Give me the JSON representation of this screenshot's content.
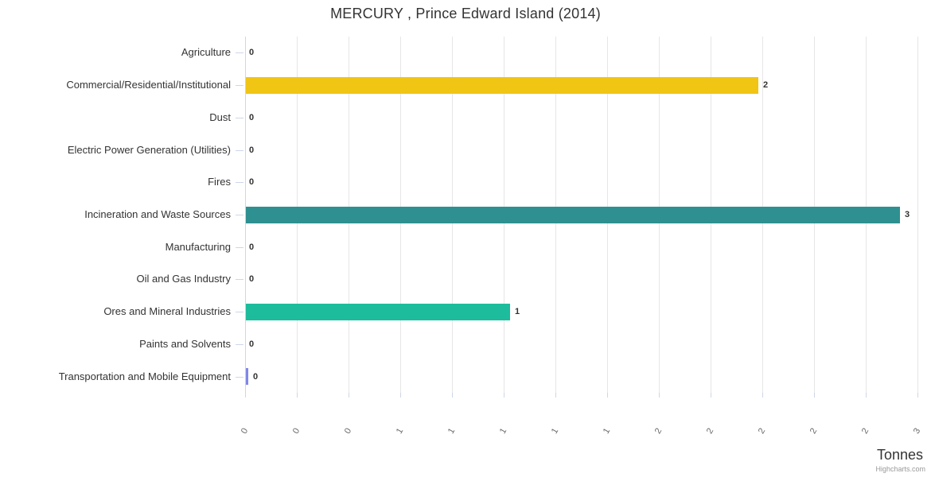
{
  "chart_data": {
    "type": "bar",
    "orientation": "horizontal",
    "title": "MERCURY , Prince Edward Island (2014)",
    "xlabel": "Tonnes",
    "ylabel": "",
    "categories": [
      "Agriculture",
      "Commercial/Residential/Institutional",
      "Dust",
      "Electric Power Generation (Utilities)",
      "Fires",
      "Incineration and Waste Sources",
      "Manufacturing",
      "Oil and Gas Industry",
      "Ores and Mineral Industries",
      "Paints and Solvents",
      "Transportation and Mobile Equipment"
    ],
    "values": [
      0,
      1.98,
      0,
      0,
      0,
      2.53,
      0,
      0,
      1.02,
      0,
      0.01
    ],
    "data_labels": [
      "0",
      "2",
      "0",
      "0",
      "0",
      "3",
      "0",
      "0",
      "1",
      "0",
      "0"
    ],
    "bar_colors": [
      "#cccccc",
      "#F0C514",
      "#cccccc",
      "#cccccc",
      "#cccccc",
      "#2E9090",
      "#cccccc",
      "#cccccc",
      "#1CBC9C",
      "#cccccc",
      "#8087E8"
    ],
    "value_axis": {
      "min": 0,
      "max": 2.6,
      "tick_interval": 0.2,
      "tick_labels": [
        "0",
        "0",
        "0",
        "1",
        "1",
        "1",
        "1",
        "1",
        "2",
        "2",
        "2",
        "2",
        "2",
        "3"
      ],
      "label_rotation_deg": -60
    },
    "grid": true,
    "legend": false
  },
  "credits": "Highcharts.com",
  "colors": {
    "grid": "#e6e6e6",
    "axis": "#ccd6eb",
    "title_text": "#333333",
    "category_text": "#333333",
    "tick_text": "#666666",
    "data_label_text": "#333333",
    "credits_text": "#999999"
  }
}
